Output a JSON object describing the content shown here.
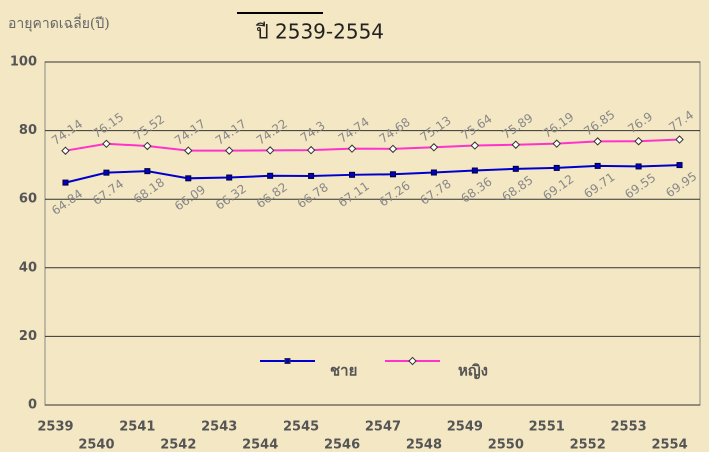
{
  "chart_data": {
    "type": "line",
    "title": "ปี 2539-2554",
    "y_label": "อายุคาดเฉลี่ย(ปี)",
    "categories": [
      "2539",
      "2540",
      "2541",
      "2542",
      "2543",
      "2544",
      "2545",
      "2546",
      "2547",
      "2548",
      "2549",
      "2550",
      "2551",
      "2552",
      "2553",
      "2554"
    ],
    "series": [
      {
        "name": "ชาย",
        "color": "#0000cc",
        "values": [
          64.84,
          67.74,
          68.18,
          66.09,
          66.32,
          66.82,
          66.78,
          67.11,
          67.26,
          67.78,
          68.36,
          68.85,
          69.12,
          69.71,
          69.55,
          69.95
        ]
      },
      {
        "name": "หญิง",
        "color": "#ff33cc",
        "values": [
          74.14,
          76.15,
          75.52,
          74.17,
          74.17,
          74.22,
          74.3,
          74.74,
          74.68,
          75.13,
          75.64,
          75.89,
          76.19,
          76.85,
          76.9,
          77.4
        ]
      }
    ],
    "ylim": [
      0,
      100
    ],
    "yticks": [
      0,
      20,
      40,
      60,
      80,
      100
    ],
    "grid": true
  }
}
